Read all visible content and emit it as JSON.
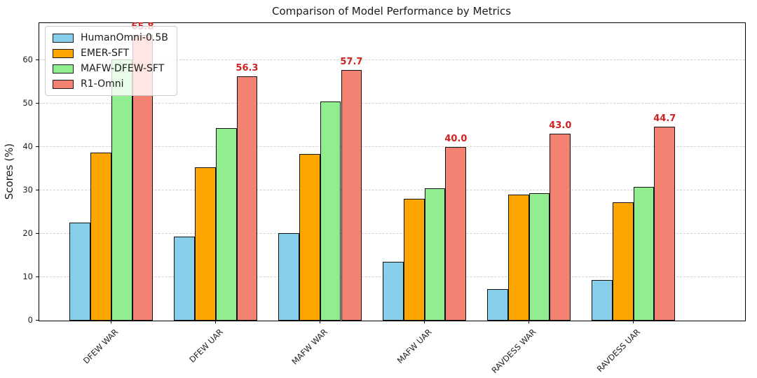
{
  "chart_data": {
    "type": "bar",
    "title": "Comparison of Model Performance by Metrics",
    "ylabel": "Scores (%)",
    "xlabel": "",
    "categories": [
      "DFEW WAR",
      "DFEW UAR",
      "MAFW WAR",
      "MAFW UAR",
      "RAVDESS WAR",
      "RAVDESS UAR"
    ],
    "series": [
      {
        "name": "HumanOmni-0.5B",
        "color": "#87CEEB",
        "values": [
          22.6,
          19.4,
          20.2,
          13.5,
          7.3,
          9.4
        ]
      },
      {
        "name": "EMER-SFT",
        "color": "#FFA500",
        "values": [
          38.7,
          35.3,
          38.4,
          28.0,
          29.0,
          27.2
        ]
      },
      {
        "name": "MAFW-DFEW-SFT",
        "color": "#90EE90",
        "values": [
          60.2,
          44.4,
          50.4,
          30.4,
          29.3,
          30.8
        ]
      },
      {
        "name": "R1-Omni",
        "color": "#F48272",
        "values": [
          65.8,
          56.3,
          57.7,
          40.0,
          43.0,
          44.7
        ],
        "value_labels": [
          "65.8",
          "56.3",
          "57.7",
          "40.0",
          "43.0",
          "44.7"
        ],
        "label_color": "#cc2222"
      }
    ],
    "ylim": [
      0,
      68.5
    ],
    "yticks": [
      0,
      10,
      20,
      30,
      40,
      50,
      60
    ],
    "legend_position": "upper left",
    "grid": {
      "axis": "y",
      "style": "dashed",
      "color": "#cfcfcf"
    },
    "bar_edge_color": "#111111"
  }
}
